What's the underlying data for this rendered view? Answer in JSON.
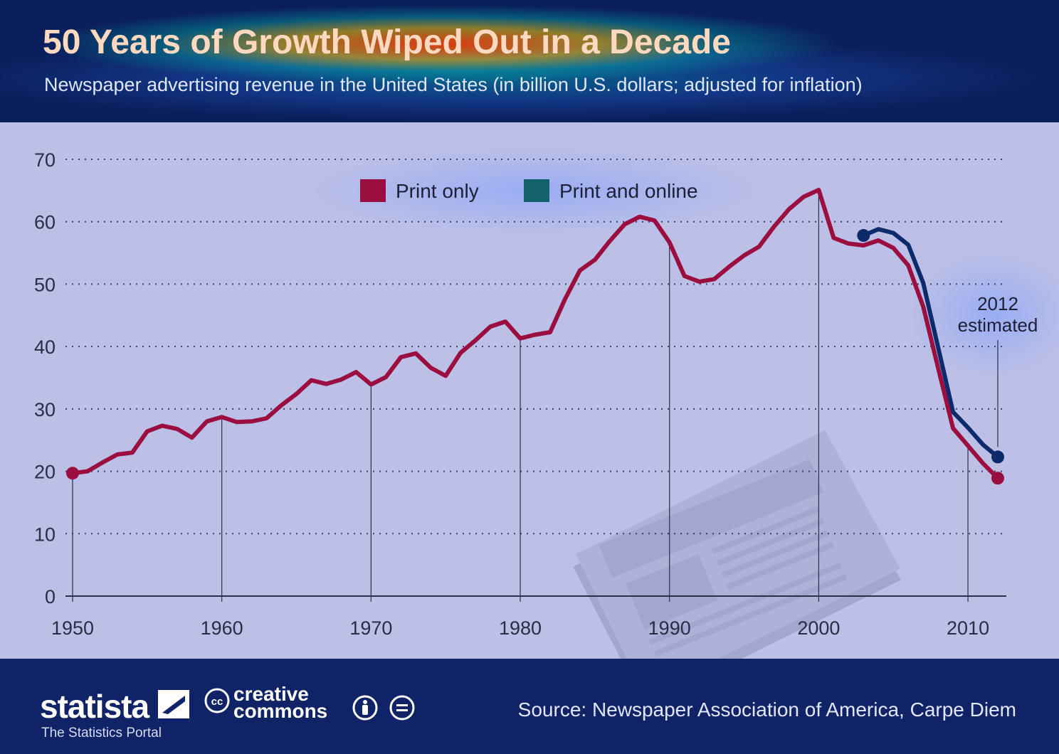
{
  "header": {
    "title": "50 Years of Growth Wiped Out in a Decade",
    "subtitle": "Newspaper advertising revenue in the United States (in billion U.S. dollars; adjusted for inflation)"
  },
  "chart_data": {
    "type": "line",
    "title": "50 Years of Growth Wiped Out in a Decade",
    "subtitle": "Newspaper advertising revenue in the United States (in billion U.S. dollars; adjusted for inflation)",
    "xlim": [
      1950,
      2012
    ],
    "ylim": [
      0,
      70
    ],
    "x_ticks": [
      "1950",
      "1960",
      "1970",
      "1980",
      "1990",
      "2000",
      "2010"
    ],
    "y_ticks": [
      "0",
      "10",
      "20",
      "30",
      "40",
      "50",
      "60",
      "70"
    ],
    "grid": "horizontal dotted",
    "legend_position": "top-center",
    "annotation": {
      "x": 2012,
      "text_lines": [
        "2012",
        "estimated"
      ]
    },
    "series": [
      {
        "name": "Print only",
        "color": "#9a0f3f",
        "x": [
          1950,
          1951,
          1952,
          1953,
          1954,
          1955,
          1956,
          1957,
          1958,
          1959,
          1960,
          1961,
          1962,
          1963,
          1964,
          1965,
          1966,
          1967,
          1968,
          1969,
          1970,
          1971,
          1972,
          1973,
          1974,
          1975,
          1976,
          1977,
          1978,
          1979,
          1980,
          1981,
          1982,
          1983,
          1984,
          1985,
          1986,
          1987,
          1988,
          1989,
          1990,
          1991,
          1992,
          1993,
          1994,
          1995,
          1996,
          1997,
          1998,
          1999,
          2000,
          2001,
          2002,
          2003,
          2004,
          2005,
          2006,
          2007,
          2008,
          2009,
          2010,
          2011,
          2012
        ],
        "values": [
          19.7,
          20.0,
          21.4,
          22.7,
          23.0,
          26.4,
          27.3,
          26.8,
          25.4,
          28.0,
          28.7,
          27.9,
          28.0,
          28.5,
          30.6,
          32.4,
          34.6,
          34.0,
          34.7,
          35.9,
          33.9,
          35.1,
          38.3,
          38.9,
          36.6,
          35.3,
          39.0,
          41.0,
          43.2,
          44.0,
          41.3,
          41.9,
          42.3,
          47.6,
          52.2,
          53.9,
          56.9,
          59.6,
          60.8,
          60.2,
          56.7,
          51.3,
          50.4,
          50.8,
          52.8,
          54.6,
          56.0,
          59.2,
          62.0,
          64.0,
          65.1,
          57.4,
          56.5,
          56.2,
          57.0,
          55.8,
          53.0,
          46.4,
          36.6,
          26.9,
          24.1,
          21.3,
          18.9
        ]
      },
      {
        "name": "Print and online",
        "color": "#0d2b6b",
        "x": [
          2003,
          2004,
          2005,
          2006,
          2007,
          2008,
          2009,
          2010,
          2011,
          2012
        ],
        "values": [
          57.8,
          58.8,
          58.2,
          56.3,
          50.2,
          39.9,
          29.5,
          27.0,
          24.3,
          22.3
        ]
      }
    ]
  },
  "footer": {
    "brand": "statista",
    "tagline": "The Statistics Portal",
    "cc_label": "cc",
    "cc_line1": "creative",
    "cc_line2": "commons",
    "source": "Source: Newspaper Association of America, Carpe Diem"
  }
}
